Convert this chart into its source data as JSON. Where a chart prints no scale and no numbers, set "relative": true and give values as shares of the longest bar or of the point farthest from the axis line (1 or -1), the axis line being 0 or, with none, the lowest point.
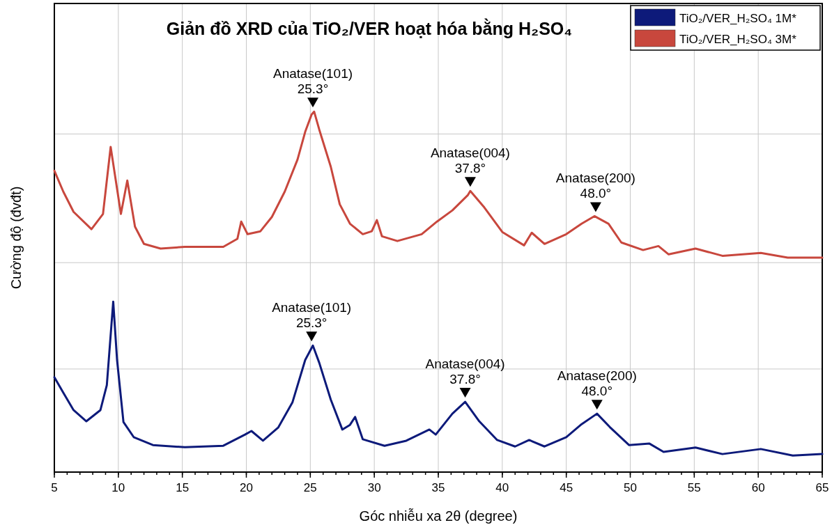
{
  "chart_data": {
    "type": "line",
    "title": "Giản đồ XRD của TiO₂/VER hoạt hóa bằng H₂SO₄",
    "xlabel": "Góc nhiễu xa 2θ (degree)",
    "ylabel": "Cường độ (đvđt)",
    "relative": true,
    "xlim": [
      5,
      65
    ],
    "xticks": [
      5,
      10,
      15,
      20,
      25,
      30,
      35,
      40,
      45,
      50,
      55,
      60,
      65
    ],
    "grid": true,
    "legend": "top right",
    "line_style": "solid",
    "marker": "none",
    "series": [
      {
        "name": "TiO₂/VER_H₂SO₄ 1M*",
        "color": "#0d1a7a",
        "x": [
          5.0,
          5.7,
          6.5,
          7.5,
          8.6,
          9.1,
          9.6,
          9.9,
          10.4,
          11.2,
          12.7,
          15.2,
          18.2,
          19.9,
          20.4,
          21.3,
          22.5,
          23.6,
          24.6,
          25.2,
          25.7,
          26.6,
          27.5,
          28.1,
          28.5,
          29.1,
          30.8,
          32.5,
          34.3,
          34.8,
          36.1,
          37.1,
          38.2,
          39.6,
          41.0,
          42.1,
          43.3,
          45.0,
          46.2,
          47.4,
          48.4,
          49.9,
          51.5,
          52.6,
          55.1,
          57.2,
          60.2,
          62.7,
          65.0
        ],
        "values": [
          0.263,
          0.22,
          0.172,
          0.141,
          0.172,
          0.241,
          0.473,
          0.311,
          0.139,
          0.097,
          0.075,
          0.069,
          0.073,
          0.104,
          0.114,
          0.087,
          0.124,
          0.193,
          0.311,
          0.351,
          0.303,
          0.201,
          0.118,
          0.131,
          0.153,
          0.091,
          0.073,
          0.087,
          0.118,
          0.104,
          0.162,
          0.195,
          0.141,
          0.089,
          0.071,
          0.089,
          0.071,
          0.097,
          0.133,
          0.162,
          0.125,
          0.075,
          0.079,
          0.056,
          0.068,
          0.05,
          0.064,
          0.046,
          0.05
        ]
      },
      {
        "name": "TiO₂/VER_H₂SO₄ 3M*",
        "color": "#c8473d",
        "x": [
          5.0,
          5.7,
          6.5,
          7.9,
          8.8,
          9.4,
          10.2,
          10.7,
          11.3,
          12.0,
          13.3,
          15.2,
          18.2,
          19.3,
          19.6,
          20.1,
          21.1,
          22.0,
          23.0,
          24.0,
          24.6,
          25.1,
          25.3,
          25.7,
          26.6,
          27.3,
          28.1,
          29.1,
          29.8,
          30.2,
          30.6,
          31.8,
          33.7,
          34.9,
          36.1,
          37.3,
          37.5,
          38.6,
          40.0,
          41.7,
          42.3,
          43.3,
          45.0,
          46.2,
          47.2,
          48.3,
          49.3,
          51.0,
          52.2,
          53.0,
          55.1,
          57.2,
          60.2,
          62.3,
          65.0
        ],
        "values": [
          0.836,
          0.778,
          0.722,
          0.674,
          0.716,
          0.902,
          0.716,
          0.809,
          0.681,
          0.633,
          0.62,
          0.625,
          0.625,
          0.647,
          0.695,
          0.66,
          0.668,
          0.708,
          0.778,
          0.867,
          0.944,
          0.992,
          1.0,
          0.95,
          0.847,
          0.743,
          0.689,
          0.66,
          0.668,
          0.699,
          0.654,
          0.641,
          0.66,
          0.695,
          0.726,
          0.768,
          0.78,
          0.734,
          0.666,
          0.629,
          0.664,
          0.633,
          0.66,
          0.689,
          0.71,
          0.689,
          0.637,
          0.616,
          0.627,
          0.604,
          0.62,
          0.6,
          0.608,
          0.595,
          0.595
        ]
      }
    ],
    "annotations": [
      {
        "text": "Anatase(101)\n25.3°",
        "x": 25.2,
        "y": 1.0
      },
      {
        "text": "Anatase(004)\n37.8°",
        "x": 37.5,
        "y": 0.78
      },
      {
        "text": "Anatase(200)\n48.0°",
        "x": 47.3,
        "y": 0.71
      },
      {
        "text": "Anatase(101)\n25.3°",
        "x": 25.1,
        "y": 0.351
      },
      {
        "text": "Anatase(004)\n37.8°",
        "x": 37.1,
        "y": 0.195
      },
      {
        "text": "Anatase(200)\n48.0°",
        "x": 47.4,
        "y": 0.162
      }
    ]
  }
}
